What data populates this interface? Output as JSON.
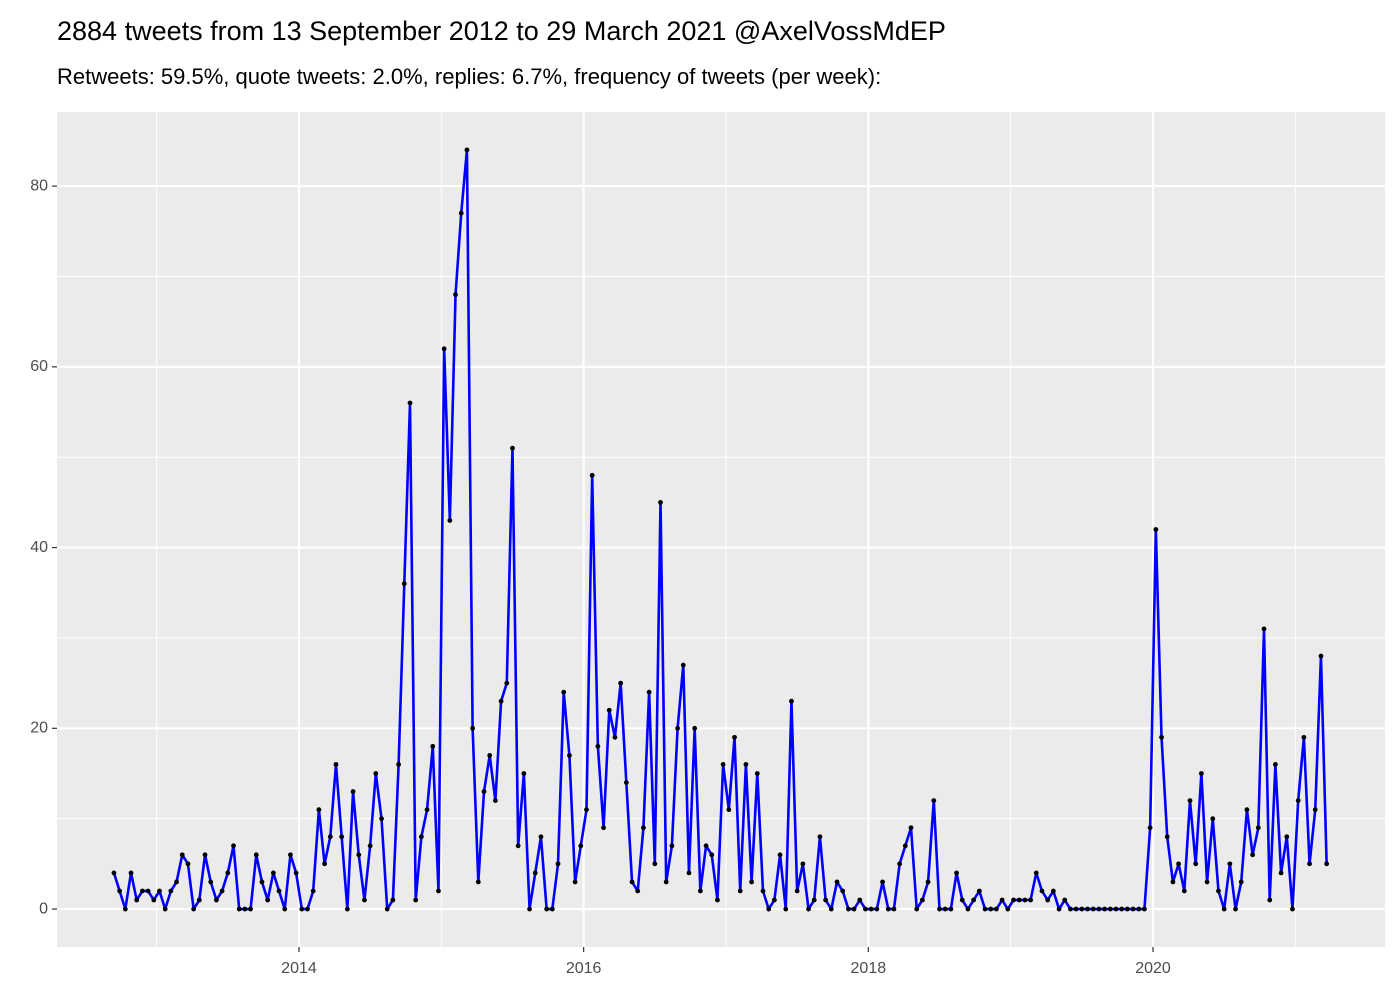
{
  "chart_data": {
    "type": "line",
    "title": "2884 tweets from 13 September 2012 to 29 March 2021 @AxelVossMdEP",
    "subtitle": "Retweets: 59.5%, quote tweets: 2.0%, replies: 6.7%, frequency of tweets (per week):",
    "color": "#0000ff",
    "point_color": "#000000",
    "grid": true,
    "xlim": [
      2012.3,
      2021.63
    ],
    "ylim": [
      -4.2,
      88.2
    ],
    "xticks": [
      2014,
      2016,
      2018,
      2020
    ],
    "yticks": [
      0,
      20,
      40,
      60,
      80
    ],
    "x": [
      2012.7,
      2012.74,
      2012.78,
      2012.82,
      2012.86,
      2012.9,
      2012.94,
      2012.98,
      2013.02,
      2013.06,
      2013.1,
      2013.14,
      2013.18,
      2013.22,
      2013.26,
      2013.3,
      2013.34,
      2013.38,
      2013.42,
      2013.46,
      2013.5,
      2013.54,
      2013.58,
      2013.62,
      2013.66,
      2013.7,
      2013.74,
      2013.78,
      2013.82,
      2013.86,
      2013.9,
      2013.94,
      2013.98,
      2014.02,
      2014.06,
      2014.1,
      2014.14,
      2014.18,
      2014.22,
      2014.26,
      2014.3,
      2014.34,
      2014.38,
      2014.42,
      2014.46,
      2014.5,
      2014.54,
      2014.58,
      2014.62,
      2014.66,
      2014.7,
      2014.74,
      2014.78,
      2014.82,
      2014.86,
      2014.9,
      2014.94,
      2014.98,
      2015.02,
      2015.06,
      2015.1,
      2015.14,
      2015.18,
      2015.22,
      2015.26,
      2015.3,
      2015.34,
      2015.38,
      2015.42,
      2015.46,
      2015.5,
      2015.54,
      2015.58,
      2015.62,
      2015.66,
      2015.7,
      2015.74,
      2015.78,
      2015.82,
      2015.86,
      2015.9,
      2015.94,
      2015.98,
      2016.02,
      2016.06,
      2016.1,
      2016.14,
      2016.18,
      2016.22,
      2016.26,
      2016.3,
      2016.34,
      2016.38,
      2016.42,
      2016.46,
      2016.5,
      2016.54,
      2016.58,
      2016.62,
      2016.66,
      2016.7,
      2016.74,
      2016.78,
      2016.82,
      2016.86,
      2016.9,
      2016.94,
      2016.98,
      2017.02,
      2017.06,
      2017.1,
      2017.14,
      2017.18,
      2017.22,
      2017.26,
      2017.3,
      2017.34,
      2017.38,
      2017.42,
      2017.46,
      2017.5,
      2017.54,
      2017.58,
      2017.62,
      2017.66,
      2017.7,
      2017.74,
      2017.78,
      2017.82,
      2017.86,
      2017.9,
      2017.94,
      2017.98,
      2018.02,
      2018.06,
      2018.1,
      2018.14,
      2018.18,
      2018.22,
      2018.26,
      2018.3,
      2018.34,
      2018.38,
      2018.42,
      2018.46,
      2018.5,
      2018.54,
      2018.58,
      2018.62,
      2018.66,
      2018.7,
      2018.74,
      2018.78,
      2018.82,
      2018.86,
      2018.9,
      2018.94,
      2018.98,
      2019.02,
      2019.06,
      2019.1,
      2019.14,
      2019.18,
      2019.22,
      2019.26,
      2019.3,
      2019.34,
      2019.38,
      2019.42,
      2019.46,
      2019.5,
      2019.54,
      2019.58,
      2019.62,
      2019.66,
      2019.7,
      2019.74,
      2019.78,
      2019.82,
      2019.86,
      2019.9,
      2019.94,
      2019.98,
      2020.02,
      2020.06,
      2020.1,
      2020.14,
      2020.18,
      2020.22,
      2020.26,
      2020.3,
      2020.34,
      2020.38,
      2020.42,
      2020.46,
      2020.5,
      2020.54,
      2020.58,
      2020.62,
      2020.66,
      2020.7,
      2020.74,
      2020.78,
      2020.82,
      2020.86,
      2020.9,
      2020.94,
      2020.98,
      2021.02,
      2021.06,
      2021.1,
      2021.14,
      2021.18,
      2021.22
    ],
    "values": [
      4,
      2,
      0,
      4,
      1,
      2,
      2,
      1,
      2,
      0,
      2,
      3,
      6,
      5,
      0,
      1,
      6,
      3,
      1,
      2,
      4,
      7,
      0,
      0,
      0,
      6,
      3,
      1,
      4,
      2,
      0,
      6,
      4,
      0,
      0,
      2,
      11,
      5,
      8,
      16,
      8,
      0,
      13,
      6,
      1,
      7,
      15,
      10,
      0,
      1,
      16,
      36,
      56,
      1,
      8,
      11,
      18,
      2,
      62,
      43,
      68,
      77,
      84,
      20,
      3,
      13,
      17,
      12,
      23,
      25,
      51,
      7,
      15,
      0,
      4,
      8,
      0,
      0,
      5,
      24,
      17,
      3,
      7,
      11,
      48,
      18,
      9,
      22,
      19,
      25,
      14,
      3,
      2,
      9,
      24,
      5,
      45,
      3,
      7,
      20,
      27,
      4,
      20,
      2,
      7,
      6,
      1,
      16,
      11,
      19,
      2,
      16,
      3,
      15,
      2,
      0,
      1,
      6,
      0,
      23,
      2,
      5,
      0,
      1,
      8,
      1,
      0,
      3,
      2,
      0,
      0,
      1,
      0,
      0,
      0,
      3,
      0,
      0,
      5,
      7,
      9,
      0,
      1,
      3,
      12,
      0,
      0,
      0,
      4,
      1,
      0,
      1,
      2,
      0,
      0,
      0,
      1,
      0,
      1,
      1,
      1,
      1,
      4,
      2,
      1,
      2,
      0,
      1,
      0,
      0,
      0,
      0,
      0,
      0,
      0,
      0,
      0,
      0,
      0,
      0,
      0,
      0,
      9,
      42,
      19,
      8,
      3,
      5,
      2,
      12,
      5,
      15,
      3,
      10,
      2,
      0,
      5,
      0,
      3,
      11,
      6,
      9,
      31,
      1,
      16,
      4,
      8,
      0,
      12,
      19,
      5,
      11,
      28,
      5
    ]
  }
}
